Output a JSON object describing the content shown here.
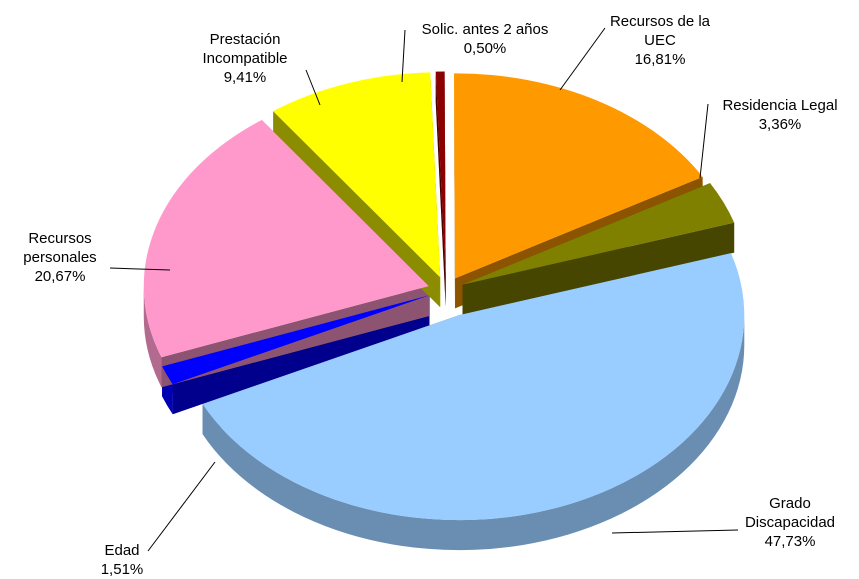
{
  "chart_data": {
    "type": "pie",
    "categories": [
      "Solic. antes 2 años",
      "Recursos de la UEC",
      "Residencia Legal",
      "Grado Discapacidad",
      "Edad",
      "Recursos personales",
      "Prestación Incompatible"
    ],
    "values": [
      0.5,
      16.81,
      3.36,
      47.73,
      1.51,
      20.67,
      9.41
    ],
    "value_labels": [
      "0,50%",
      "16,81%",
      "3,36%",
      "47,73%",
      "1,51%",
      "20,67%",
      "9,41%"
    ],
    "colors": [
      "#8b0000",
      "#ff9900",
      "#808000",
      "#99ccff",
      "#0000ff",
      "#ff99cc",
      "#ffff00"
    ]
  }
}
